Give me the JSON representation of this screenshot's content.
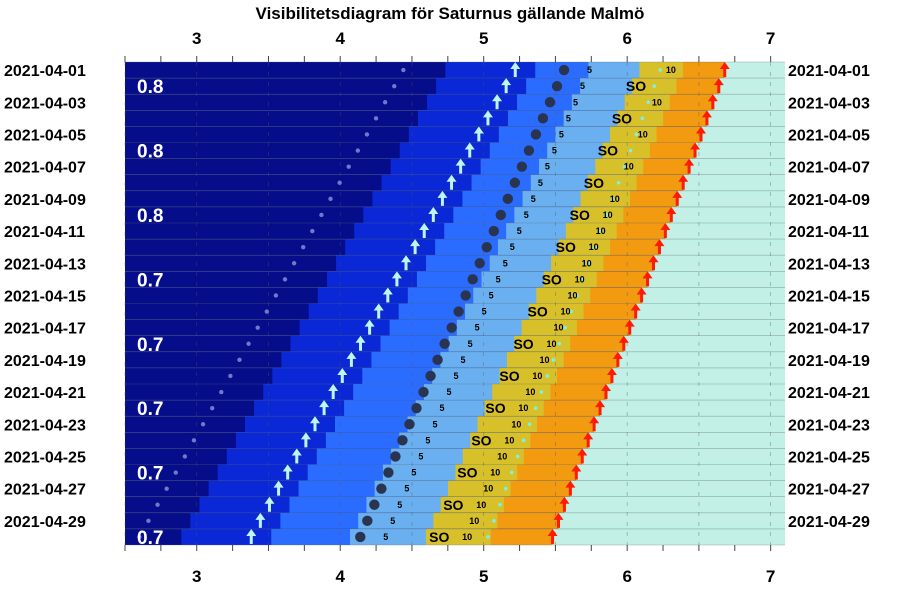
{
  "chart_data": {
    "type": "visibility-diagram",
    "title": "Visibilitetsdiagram för Saturnus gällande Malmö",
    "x_axis": {
      "ticks": [
        3,
        4,
        5,
        6,
        7
      ],
      "range": [
        2.5,
        7.1
      ]
    },
    "dates": [
      "2021-04-01",
      "2021-04-02",
      "2021-04-03",
      "2021-04-04",
      "2021-04-05",
      "2021-04-06",
      "2021-04-07",
      "2021-04-08",
      "2021-04-09",
      "2021-04-10",
      "2021-04-11",
      "2021-04-12",
      "2021-04-13",
      "2021-04-14",
      "2021-04-15",
      "2021-04-16",
      "2021-04-17",
      "2021-04-18",
      "2021-04-19",
      "2021-04-20",
      "2021-04-21",
      "2021-04-22",
      "2021-04-23",
      "2021-04-24",
      "2021-04-25",
      "2021-04-26",
      "2021-04-27",
      "2021-04-28",
      "2021-04-29",
      "2021-04-30"
    ],
    "labeled_dates": [
      "2021-04-01",
      "2021-04-03",
      "2021-04-05",
      "2021-04-07",
      "2021-04-09",
      "2021-04-11",
      "2021-04-13",
      "2021-04-15",
      "2021-04-17",
      "2021-04-19",
      "2021-04-21",
      "2021-04-23",
      "2021-04-25",
      "2021-04-27",
      "2021-04-29"
    ],
    "saturn_rise_hour": {
      "first": 5.22,
      "last": 3.38
    },
    "sunrise_hour": {
      "first": 6.68,
      "last": 5.48
    },
    "altitude_5deg_hour": {
      "first": 5.94,
      "last": 4.52
    },
    "altitude_10deg_hour": {
      "first": 6.32,
      "last": 4.9
    },
    "magnitude_labels": [
      {
        "row": 1,
        "text": "0.8"
      },
      {
        "row": 5,
        "text": "0.8"
      },
      {
        "row": 9,
        "text": "0.8"
      },
      {
        "row": 13,
        "text": "0.7"
      },
      {
        "row": 17,
        "text": "0.7"
      },
      {
        "row": 21,
        "text": "0.7"
      },
      {
        "row": 25,
        "text": "0.7"
      },
      {
        "row": 29,
        "text": "0.7"
      }
    ],
    "sun_label": "SO",
    "altitude_labels": {
      "five": "5",
      "ten": "10"
    },
    "colors": {
      "night": "#050d8a",
      "night_mid": "#0a28d6",
      "twilight": "#2a6cff",
      "dawn_light": "#6ab0f0",
      "dawn_yellow": "#d8c02a",
      "dawn_orange": "#f29a10",
      "day": "#c2f0e6",
      "rise_arrow": "#bff5f0",
      "sun_arrow": "#ff1a00",
      "planet_dot": "#2a3450"
    }
  }
}
